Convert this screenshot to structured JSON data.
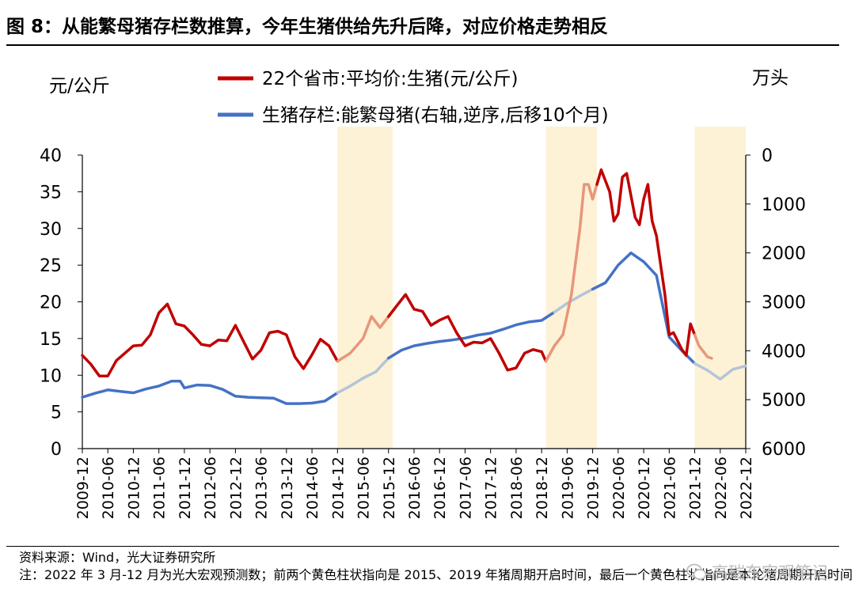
{
  "title": "图 8：从能繁母猪存栏数推算，今年生猪供给先升后降，对应价格走势相反",
  "notes": {
    "source": "资料来源：Wind，光大证券研究所",
    "note": "注：2022 年 3 月-12 月为光大宏观预测数；前两个黄色柱状指向是 2015、2019 年猪周期开启时间，最后一个黄色柱状指向是本轮猪周期开启时间"
  },
  "watermark": "高瑞东宏观笔记",
  "colors": {
    "price_line": "#C00000",
    "price_line_highlight": "#E8967A",
    "sow_line": "#4472C4",
    "sow_line_highlight": "#B4C4D8",
    "shade": "#FDF2D6"
  },
  "chart_data": {
    "type": "line",
    "title": "从能繁母猪存栏数推算，今年生猪供给先升后降，对应价格走势相反",
    "ylabel_left": "元/公斤",
    "ylabel_right": "万头",
    "ylim_left": [
      0,
      40
    ],
    "yticks_left": [
      "0",
      "5",
      "10",
      "15",
      "20",
      "25",
      "30",
      "35",
      "40"
    ],
    "ylim_right": [
      0,
      6000
    ],
    "right_axis_inverted": true,
    "yticks_right": [
      "0",
      "1000",
      "2000",
      "3000",
      "4000",
      "5000",
      "6000"
    ],
    "x_range": [
      "2009-12",
      "2022-12"
    ],
    "xticks": [
      "2009-12",
      "2010-06",
      "2010-12",
      "2011-06",
      "2011-12",
      "2012-06",
      "2012-12",
      "2013-06",
      "2013-12",
      "2014-06",
      "2014-12",
      "2015-06",
      "2015-12",
      "2016-06",
      "2016-12",
      "2017-06",
      "2017-12",
      "2018-06",
      "2018-12",
      "2019-06",
      "2019-12",
      "2020-06",
      "2020-12",
      "2021-06",
      "2021-12",
      "2022-06",
      "2022-12"
    ],
    "shaded_periods": [
      {
        "start": "2014-12",
        "end": "2016-01"
      },
      {
        "start": "2019-01",
        "end": "2020-01"
      },
      {
        "start": "2021-12",
        "end": "2022-12"
      }
    ],
    "series": [
      {
        "name": "22个省市:平均价:生猪(元/公斤)",
        "axis": "left",
        "points": [
          [
            "2009-12",
            12.7
          ],
          [
            "2010-02",
            11.5
          ],
          [
            "2010-04",
            9.9
          ],
          [
            "2010-06",
            9.9
          ],
          [
            "2010-08",
            12.0
          ],
          [
            "2010-10",
            13.0
          ],
          [
            "2010-12",
            14.0
          ],
          [
            "2011-02",
            14.1
          ],
          [
            "2011-04",
            15.5
          ],
          [
            "2011-06",
            18.5
          ],
          [
            "2011-08",
            19.7
          ],
          [
            "2011-10",
            17.0
          ],
          [
            "2011-12",
            16.7
          ],
          [
            "2012-02",
            15.5
          ],
          [
            "2012-04",
            14.2
          ],
          [
            "2012-06",
            14.0
          ],
          [
            "2012-08",
            14.8
          ],
          [
            "2012-10",
            14.7
          ],
          [
            "2012-12",
            16.8
          ],
          [
            "2013-02",
            14.5
          ],
          [
            "2013-04",
            12.2
          ],
          [
            "2013-06",
            13.4
          ],
          [
            "2013-08",
            15.8
          ],
          [
            "2013-10",
            16.0
          ],
          [
            "2013-12",
            15.5
          ],
          [
            "2014-02",
            12.5
          ],
          [
            "2014-04",
            10.9
          ],
          [
            "2014-06",
            12.8
          ],
          [
            "2014-08",
            14.9
          ],
          [
            "2014-10",
            14.0
          ],
          [
            "2014-12",
            11.9
          ],
          [
            "2015-03",
            13.0
          ],
          [
            "2015-06",
            15.0
          ],
          [
            "2015-08",
            18.0
          ],
          [
            "2015-10",
            16.5
          ],
          [
            "2015-12",
            18.0
          ],
          [
            "2016-02",
            19.5
          ],
          [
            "2016-04",
            21.0
          ],
          [
            "2016-06",
            19.0
          ],
          [
            "2016-08",
            18.7
          ],
          [
            "2016-10",
            16.8
          ],
          [
            "2016-12",
            17.5
          ],
          [
            "2017-02",
            18.0
          ],
          [
            "2017-04",
            15.8
          ],
          [
            "2017-06",
            14.0
          ],
          [
            "2017-08",
            14.5
          ],
          [
            "2017-10",
            14.4
          ],
          [
            "2017-12",
            15.0
          ],
          [
            "2018-02",
            13.0
          ],
          [
            "2018-04",
            10.7
          ],
          [
            "2018-06",
            11.0
          ],
          [
            "2018-08",
            13.0
          ],
          [
            "2018-10",
            13.5
          ],
          [
            "2018-12",
            13.2
          ],
          [
            "2019-01",
            11.9
          ],
          [
            "2019-03",
            14.0
          ],
          [
            "2019-05",
            15.5
          ],
          [
            "2019-07",
            21.0
          ],
          [
            "2019-09",
            30.0
          ],
          [
            "2019-10",
            36.0
          ],
          [
            "2019-11",
            36.0
          ],
          [
            "2019-12",
            34.0
          ],
          [
            "2020-01",
            36.0
          ],
          [
            "2020-02",
            38.0
          ],
          [
            "2020-04",
            35.0
          ],
          [
            "2020-05",
            31.0
          ],
          [
            "2020-06",
            32.0
          ],
          [
            "2020-07",
            37.0
          ],
          [
            "2020-08",
            37.5
          ],
          [
            "2020-10",
            31.5
          ],
          [
            "2020-11",
            30.5
          ],
          [
            "2020-12",
            34.0
          ],
          [
            "2021-01",
            36.0
          ],
          [
            "2021-02",
            31.0
          ],
          [
            "2021-03",
            29.0
          ],
          [
            "2021-05",
            21.0
          ],
          [
            "2021-06",
            15.5
          ],
          [
            "2021-07",
            15.8
          ],
          [
            "2021-09",
            13.5
          ],
          [
            "2021-10",
            12.7
          ],
          [
            "2021-11",
            17.0
          ],
          [
            "2021-12",
            15.5
          ],
          [
            "2022-01",
            14.0
          ],
          [
            "2022-03",
            12.5
          ],
          [
            "2022-04",
            12.3
          ]
        ]
      },
      {
        "name": "生猪存栏:能繁母猪(右轴,逆序,后移10个月)",
        "axis": "right",
        "points": [
          [
            "2009-12",
            4950
          ],
          [
            "2010-03",
            4870
          ],
          [
            "2010-06",
            4800
          ],
          [
            "2010-09",
            4830
          ],
          [
            "2010-12",
            4860
          ],
          [
            "2011-03",
            4780
          ],
          [
            "2011-06",
            4720
          ],
          [
            "2011-09",
            4620
          ],
          [
            "2011-11",
            4620
          ],
          [
            "2011-12",
            4760
          ],
          [
            "2012-03",
            4700
          ],
          [
            "2012-06",
            4710
          ],
          [
            "2012-09",
            4790
          ],
          [
            "2012-12",
            4930
          ],
          [
            "2013-03",
            4950
          ],
          [
            "2013-06",
            4960
          ],
          [
            "2013-09",
            4970
          ],
          [
            "2013-12",
            5080
          ],
          [
            "2014-03",
            5080
          ],
          [
            "2014-06",
            5070
          ],
          [
            "2014-09",
            5030
          ],
          [
            "2014-12",
            4860
          ],
          [
            "2015-03",
            4720
          ],
          [
            "2015-06",
            4560
          ],
          [
            "2015-09",
            4430
          ],
          [
            "2015-12",
            4150
          ],
          [
            "2016-03",
            3990
          ],
          [
            "2016-06",
            3900
          ],
          [
            "2016-09",
            3850
          ],
          [
            "2016-12",
            3810
          ],
          [
            "2017-03",
            3780
          ],
          [
            "2017-06",
            3740
          ],
          [
            "2017-09",
            3680
          ],
          [
            "2017-12",
            3640
          ],
          [
            "2018-03",
            3560
          ],
          [
            "2018-06",
            3470
          ],
          [
            "2018-09",
            3410
          ],
          [
            "2018-12",
            3380
          ],
          [
            "2019-03",
            3210
          ],
          [
            "2019-06",
            3030
          ],
          [
            "2019-09",
            2880
          ],
          [
            "2019-12",
            2740
          ],
          [
            "2020-03",
            2610
          ],
          [
            "2020-06",
            2250
          ],
          [
            "2020-09",
            2000
          ],
          [
            "2020-12",
            2180
          ],
          [
            "2021-03",
            2460
          ],
          [
            "2021-06",
            3720
          ],
          [
            "2021-09",
            4000
          ],
          [
            "2021-12",
            4260
          ],
          [
            "2022-03",
            4400
          ],
          [
            "2022-06",
            4580
          ],
          [
            "2022-09",
            4380
          ],
          [
            "2022-12",
            4310
          ]
        ]
      }
    ]
  },
  "legend": {
    "price": "22个省市:平均价:生猪(元/公斤)",
    "sow": "生猪存栏:能繁母猪(右轴,逆序,后移10个月)"
  }
}
